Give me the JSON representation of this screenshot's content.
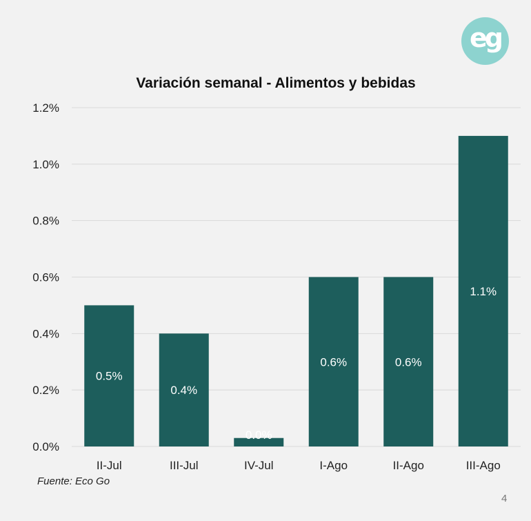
{
  "logo_text": "eg",
  "source": "Fuente: Eco Go",
  "page_number": "4",
  "colors": {
    "bar": "#1d5e5c",
    "background": "#f2f2f2",
    "grid": "#d9d9d9",
    "logo": "#8dd3cf"
  },
  "chart_data": {
    "type": "bar",
    "title": "Variación semanal - Alimentos y bebidas",
    "xlabel": "",
    "ylabel": "",
    "categories": [
      "II-Jul",
      "III-Jul",
      "IV-Jul",
      "I-Ago",
      "II-Ago",
      "III-Ago"
    ],
    "values": [
      0.5,
      0.4,
      0.03,
      0.6,
      0.6,
      1.1
    ],
    "data_labels": [
      "0.5%",
      "0.4%",
      "0.0%",
      "0.6%",
      "0.6%",
      "1.1%"
    ],
    "ylim": [
      0,
      1.2
    ],
    "yticks": [
      "0.0%",
      "0.2%",
      "0.4%",
      "0.6%",
      "0.8%",
      "1.0%",
      "1.2%"
    ],
    "grid": true,
    "legend": "none"
  }
}
